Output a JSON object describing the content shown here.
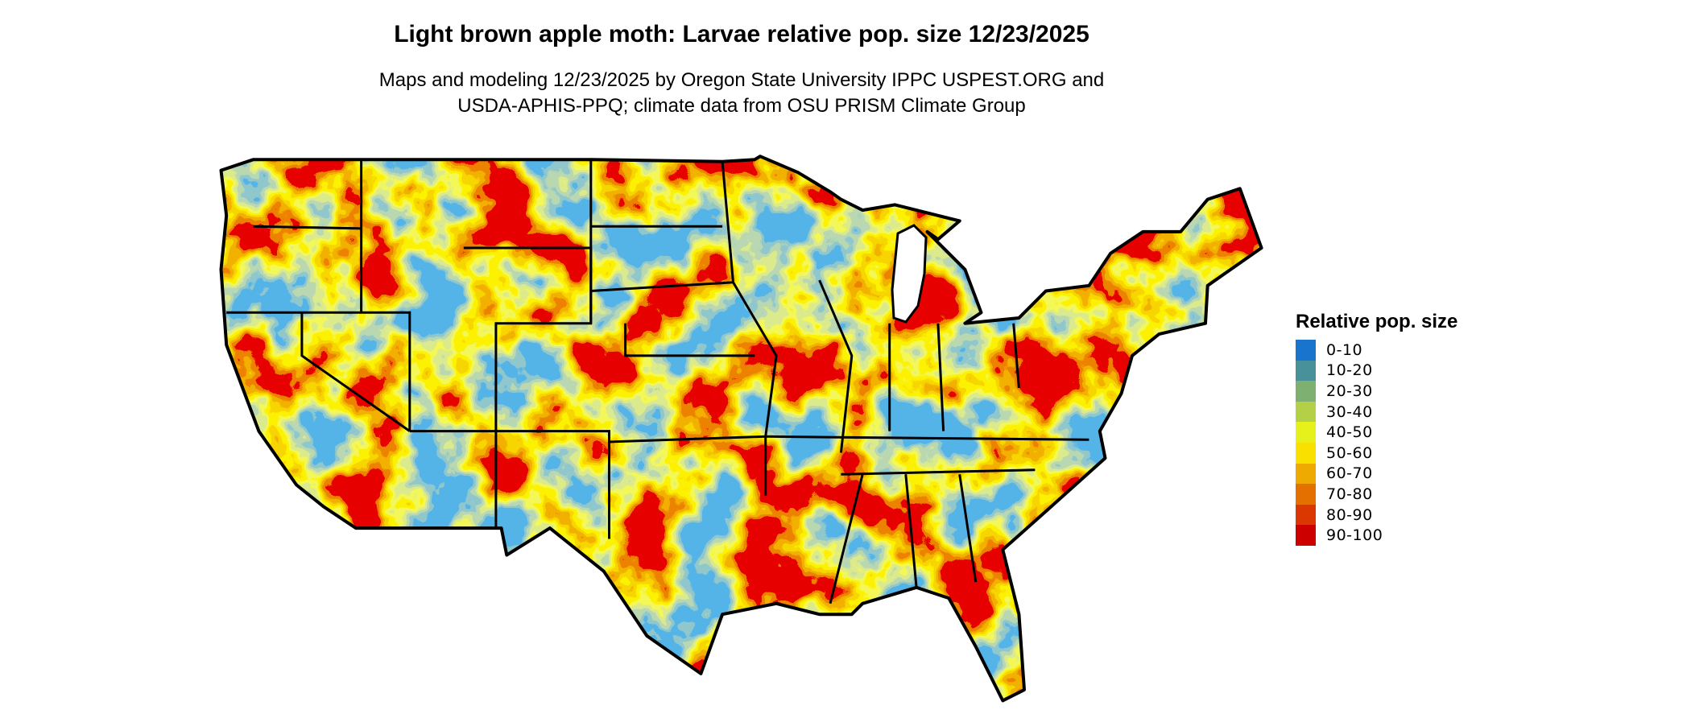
{
  "title": "Light brown apple moth: Larvae relative pop. size 12/23/2025",
  "subtitle_line1": "Maps and modeling 12/23/2025 by Oregon State University IPPC USPEST.ORG and",
  "subtitle_line2": "USDA-APHIS-PPQ; climate data from OSU PRISM Climate Group",
  "legend": {
    "title": "Relative pop. size",
    "items": [
      {
        "label": "0-10",
        "color": "#1874CD"
      },
      {
        "label": "10-20",
        "color": "#48919B"
      },
      {
        "label": "20-30",
        "color": "#7EB071"
      },
      {
        "label": "30-40",
        "color": "#B3D046"
      },
      {
        "label": "40-50",
        "color": "#E6F01A"
      },
      {
        "label": "50-60",
        "color": "#F9E000"
      },
      {
        "label": "60-70",
        "color": "#EEAA00"
      },
      {
        "label": "70-80",
        "color": "#E47000"
      },
      {
        "label": "80-90",
        "color": "#DA3800"
      },
      {
        "label": "90-100",
        "color": "#CD0000"
      }
    ]
  },
  "map": {
    "region": "Contiguous United States",
    "border_color": "#000000"
  }
}
